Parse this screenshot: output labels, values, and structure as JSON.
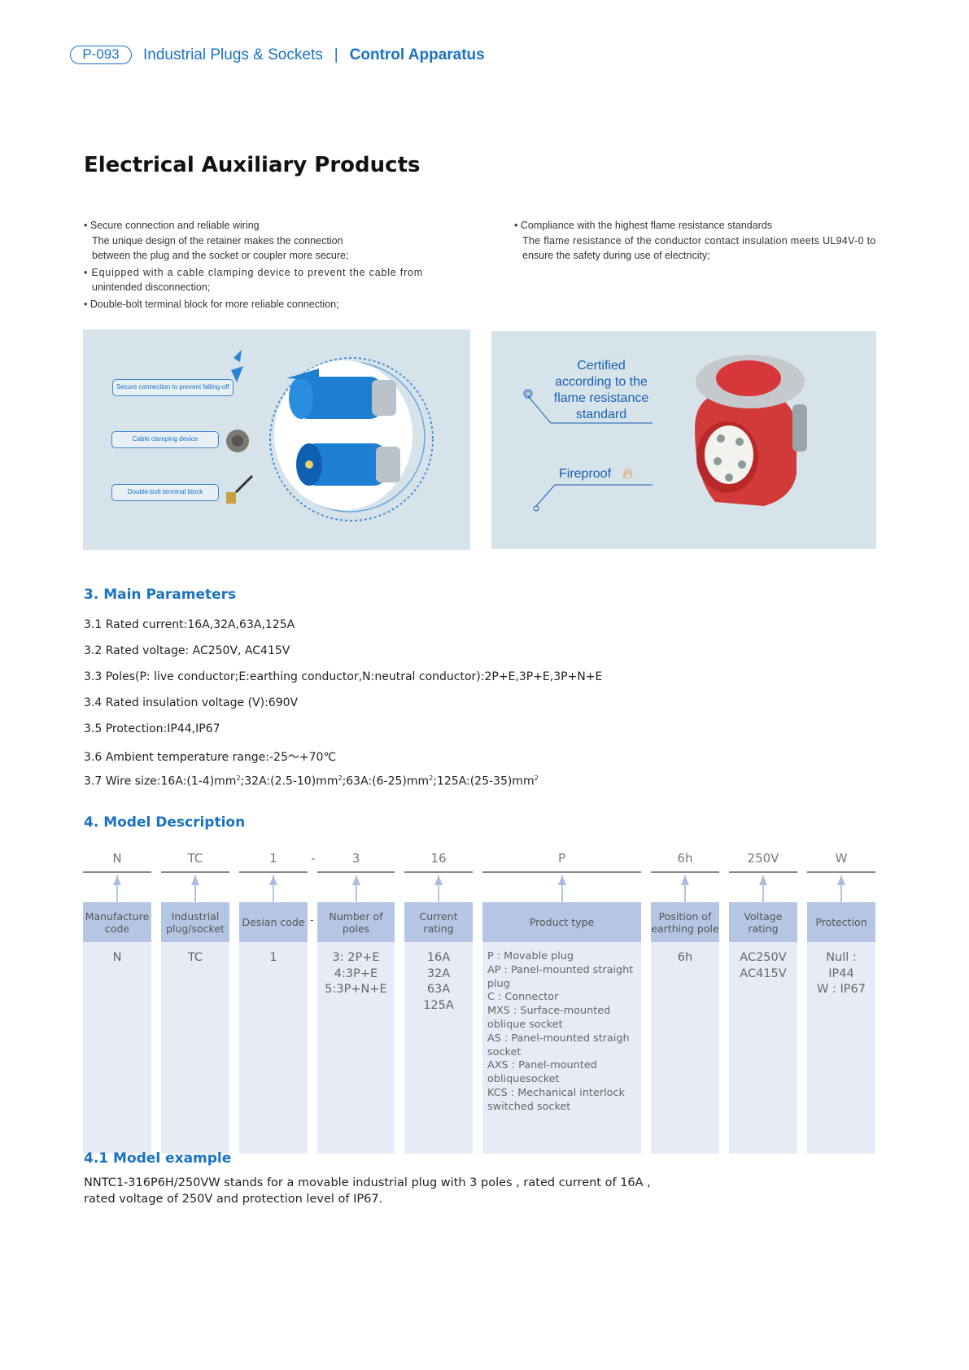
{
  "header": {
    "page_code": "P-093",
    "category": "Industrial Plugs & Sockets",
    "separator": "|",
    "section": "Control Apparatus"
  },
  "title": "Electrical Auxiliary Products",
  "features_left": [
    {
      "bullet": "Secure connection and reliable wiring",
      "lines": [
        "The unique design of the retainer makes the connection",
        "between the plug and the socket or coupler more secure;"
      ]
    },
    {
      "bullet": "Equipped with a cable clamping device to prevent the cable from",
      "lines": [
        "unintended disconnection;"
      ]
    },
    {
      "bullet": "Double-bolt terminal block for more reliable connection;",
      "lines": []
    }
  ],
  "features_right": [
    {
      "bullet": "Compliance with the highest flame resistance standards",
      "lines": [
        "The flame resistance of the conductor contact insulation meets UL94V-0 to",
        "ensure the safety during use of electricity;"
      ]
    }
  ],
  "image_left": {
    "labels": [
      "Secure connection to prevent falling-off",
      "Cable clamping device",
      "Double-bolt terminal block"
    ]
  },
  "image_right": {
    "certified": [
      "Certified",
      "according to the",
      "flame resistance",
      "standard"
    ],
    "fireproof": "Fireproof",
    "fire_icon": "flame-icon"
  },
  "main_parameters": {
    "heading": "3. Main Parameters",
    "items": [
      "3.1 Rated current:16A,32A,63A,125A",
      "3.2 Rated voltage: AC250V, AC415V",
      "3.3 Poles(P: live conductor;E:earthing conductor,N:neutral conductor):2P+E,3P+E,3P+N+E",
      "3.4 Rated insulation voltage (V):690V",
      "3.5 Protection:IP44,IP67",
      "3.6 Ambient temperature range:-25～+70℃"
    ],
    "wire_size": {
      "prefix": "3.7 Wire size:16A:(1-4)mm",
      "s1": ";32A:(2.5-10)mm",
      "s2": ";63A:(6-25)mm",
      "s3": ";125A:(25-35)mm",
      "sup": "2"
    }
  },
  "model_description": {
    "heading": "4. Model Description",
    "dash": "-",
    "columns": [
      {
        "code": "N",
        "header": "Manufacture code",
        "body": "N"
      },
      {
        "code": "TC",
        "header": "Industrial plug/socket",
        "body": "TC"
      },
      {
        "code": "1",
        "header": "Desian code",
        "body": "1"
      },
      {
        "code": "3",
        "header": "Number of poles",
        "body": "3: 2P+E\n4:3P+E\n5:3P+N+E"
      },
      {
        "code": "16",
        "header": "Current rating",
        "body": "16A\n32A\n63A\n125A"
      },
      {
        "code": "P",
        "header": "Product type",
        "body": "P : Movable plug\nAP : Panel-mounted straight\nplug\nC : Connector\nMXS : Surface-mounted\noblique socket\nAS : Panel-mounted straigh\nsocket\nAXS : Panel-mounted\nobliquesocket\nKCS : Mechanical interlock\nswitched socket"
      },
      {
        "code": "6h",
        "header": "Position of earthing pole",
        "body": "6h"
      },
      {
        "code": "250V",
        "header": "Voltage rating",
        "body": "AC250V\nAC415V"
      },
      {
        "code": "W",
        "header": "Protection",
        "body": "Null : IP44\nW : IP67"
      }
    ]
  },
  "model_example": {
    "heading": "4.1 Model example",
    "lines": [
      "NNTC1-316P6H/250VW stands for a movable industrial plug with 3 poles , rated current of 16A ,",
      "rated voltage of 250V and protection level of IP67."
    ]
  }
}
